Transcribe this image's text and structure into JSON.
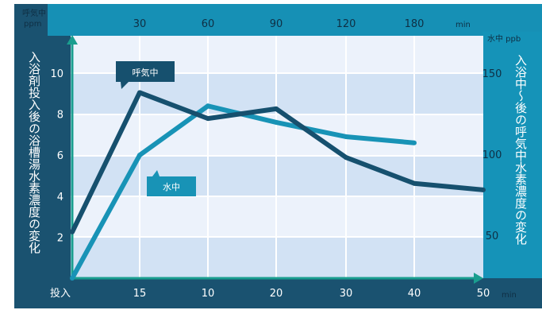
{
  "chart_data": {
    "type": "line",
    "top_axis": {
      "unit": "min",
      "ticks": [
        "30",
        "60",
        "90",
        "120",
        "180"
      ]
    },
    "bottom_axis": {
      "unit": "min",
      "ticks": [
        "投入",
        "15",
        "10",
        "20",
        "30",
        "40",
        "50"
      ]
    },
    "left_axis": {
      "unit_line1": "呼気中",
      "unit_line2": "ppm",
      "title": "入浴剤投入後の浴槽湯水素濃度の変化",
      "ticks": [
        2,
        4,
        6,
        8,
        10
      ],
      "range": [
        0,
        12
      ]
    },
    "right_axis": {
      "unit": "水中 ppb",
      "title": "入浴中〜後の呼気中水素濃度の変化",
      "ticks": [
        50,
        100,
        150
      ],
      "range": [
        25,
        175
      ]
    },
    "grid": true,
    "series": [
      {
        "name": "呼気中",
        "axis": "top-right",
        "color": "#16506e",
        "points": [
          {
            "x": "0",
            "y": 52
          },
          {
            "x": "15",
            "y": 138
          },
          {
            "x": "30",
            "y": 122
          },
          {
            "x": "60",
            "y": 128
          },
          {
            "x": "90",
            "y": 98
          },
          {
            "x": "120",
            "y": 82
          },
          {
            "x": "180",
            "y": 78
          }
        ]
      },
      {
        "name": "水中",
        "axis": "bottom-left",
        "color": "#1893b6",
        "points": [
          {
            "x": "投入",
            "y": 0
          },
          {
            "x": "15",
            "y": 6
          },
          {
            "x": "10",
            "y": 8.4
          },
          {
            "x": "20",
            "y": 7.6
          },
          {
            "x": "30",
            "y": 6.9
          },
          {
            "x": "40",
            "y": 6.6
          }
        ]
      }
    ]
  }
}
